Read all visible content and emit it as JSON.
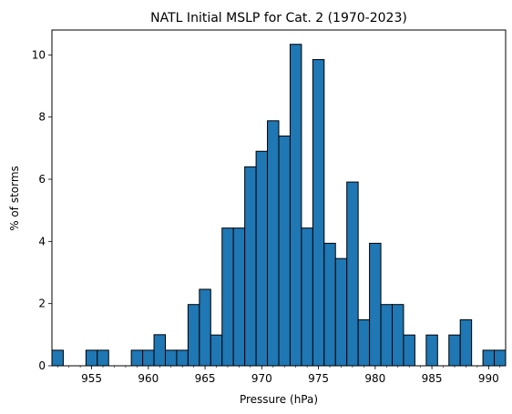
{
  "chart_data": {
    "type": "bar",
    "title": "NATL Initial MSLP for Cat. 2 (1970-2023)",
    "xlabel": "Pressure (hPa)",
    "ylabel": "% of storms",
    "xlim": [
      951.5,
      991.5
    ],
    "ylim": [
      0,
      10.8
    ],
    "x_ticks": [
      955,
      960,
      965,
      970,
      975,
      980,
      985,
      990
    ],
    "y_ticks": [
      0,
      2,
      4,
      6,
      8,
      10
    ],
    "bar_color": "#1f77b4",
    "edge_color": "#000000",
    "bin_width": 1,
    "bins": [
      {
        "x": 952,
        "value": 0.5
      },
      {
        "x": 955,
        "value": 0.5
      },
      {
        "x": 956,
        "value": 0.5
      },
      {
        "x": 959,
        "value": 0.5
      },
      {
        "x": 960,
        "value": 0.5
      },
      {
        "x": 961,
        "value": 1.0
      },
      {
        "x": 962,
        "value": 0.5
      },
      {
        "x": 963,
        "value": 0.5
      },
      {
        "x": 964,
        "value": 1.97
      },
      {
        "x": 965,
        "value": 2.46
      },
      {
        "x": 966,
        "value": 0.99
      },
      {
        "x": 967,
        "value": 4.43
      },
      {
        "x": 968,
        "value": 4.43
      },
      {
        "x": 969,
        "value": 6.4
      },
      {
        "x": 970,
        "value": 6.9
      },
      {
        "x": 971,
        "value": 7.88
      },
      {
        "x": 972,
        "value": 7.39
      },
      {
        "x": 973,
        "value": 10.34
      },
      {
        "x": 974,
        "value": 4.43
      },
      {
        "x": 975,
        "value": 9.85
      },
      {
        "x": 976,
        "value": 3.94
      },
      {
        "x": 977,
        "value": 3.45
      },
      {
        "x": 978,
        "value": 5.91
      },
      {
        "x": 979,
        "value": 1.48
      },
      {
        "x": 980,
        "value": 3.94
      },
      {
        "x": 981,
        "value": 1.97
      },
      {
        "x": 982,
        "value": 1.97
      },
      {
        "x": 983,
        "value": 0.99
      },
      {
        "x": 985,
        "value": 0.99
      },
      {
        "x": 987,
        "value": 0.99
      },
      {
        "x": 988,
        "value": 1.48
      },
      {
        "x": 990,
        "value": 0.5
      },
      {
        "x": 991,
        "value": 0.5
      }
    ]
  }
}
